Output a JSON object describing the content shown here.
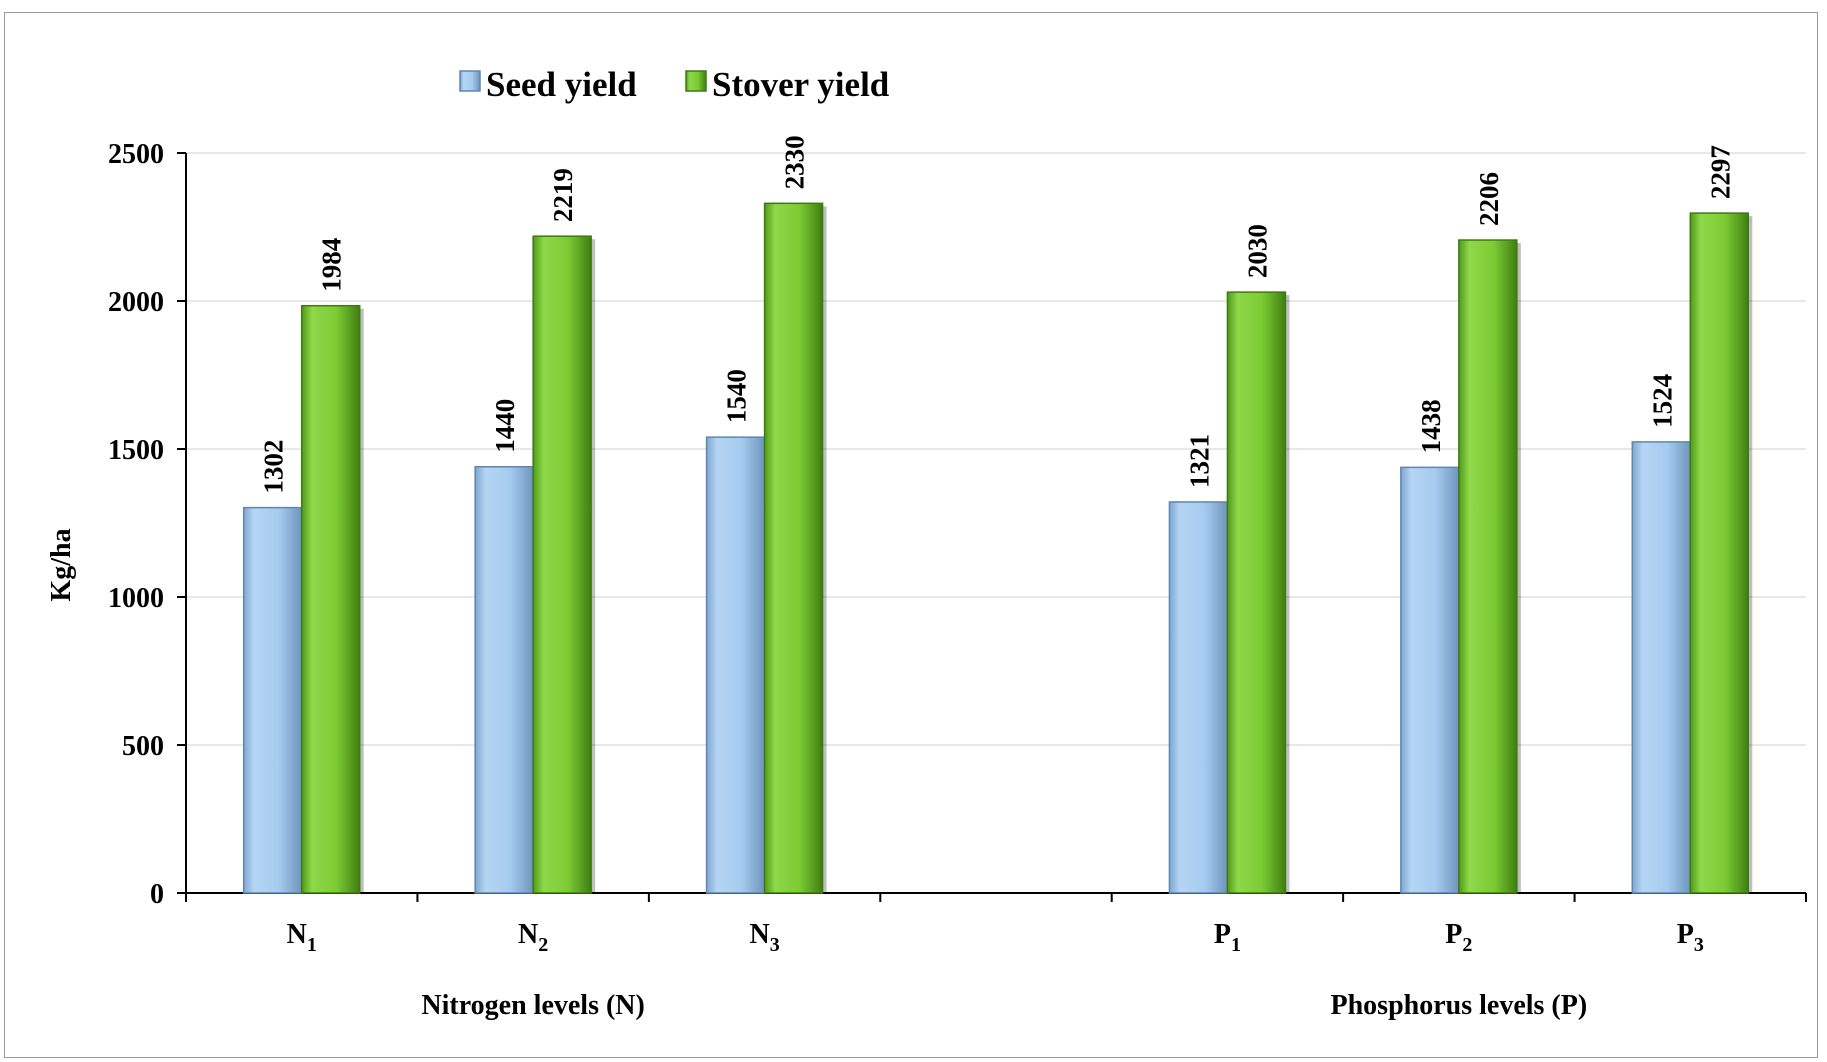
{
  "chart_data": {
    "type": "bar",
    "title": "",
    "ylabel": "Kg/ha",
    "ylim": [
      0,
      2500
    ],
    "yticks": [
      0,
      500,
      1000,
      1500,
      2000,
      2500
    ],
    "grid": true,
    "legend_position": "top-left",
    "categories": [
      {
        "base": "N",
        "sub": "1"
      },
      {
        "base": "N",
        "sub": "2"
      },
      {
        "base": "N",
        "sub": "3"
      },
      {
        "base": "",
        "sub": ""
      },
      {
        "base": "P",
        "sub": "1"
      },
      {
        "base": "P",
        "sub": "2"
      },
      {
        "base": "P",
        "sub": "3"
      }
    ],
    "groups": [
      {
        "label": "Nitrogen levels (N)",
        "from": 0,
        "to": 2
      },
      {
        "label": "Phosphorus levels (P)",
        "from": 4,
        "to": 6
      }
    ],
    "series": [
      {
        "name": "Seed yield",
        "color": "#9dc3e6",
        "values": [
          1302,
          1440,
          1540,
          null,
          1321,
          1438,
          1524
        ]
      },
      {
        "name": "Stover yield",
        "color": "#72c52a",
        "values": [
          1984,
          2219,
          2330,
          null,
          2030,
          2206,
          2297
        ]
      }
    ]
  }
}
